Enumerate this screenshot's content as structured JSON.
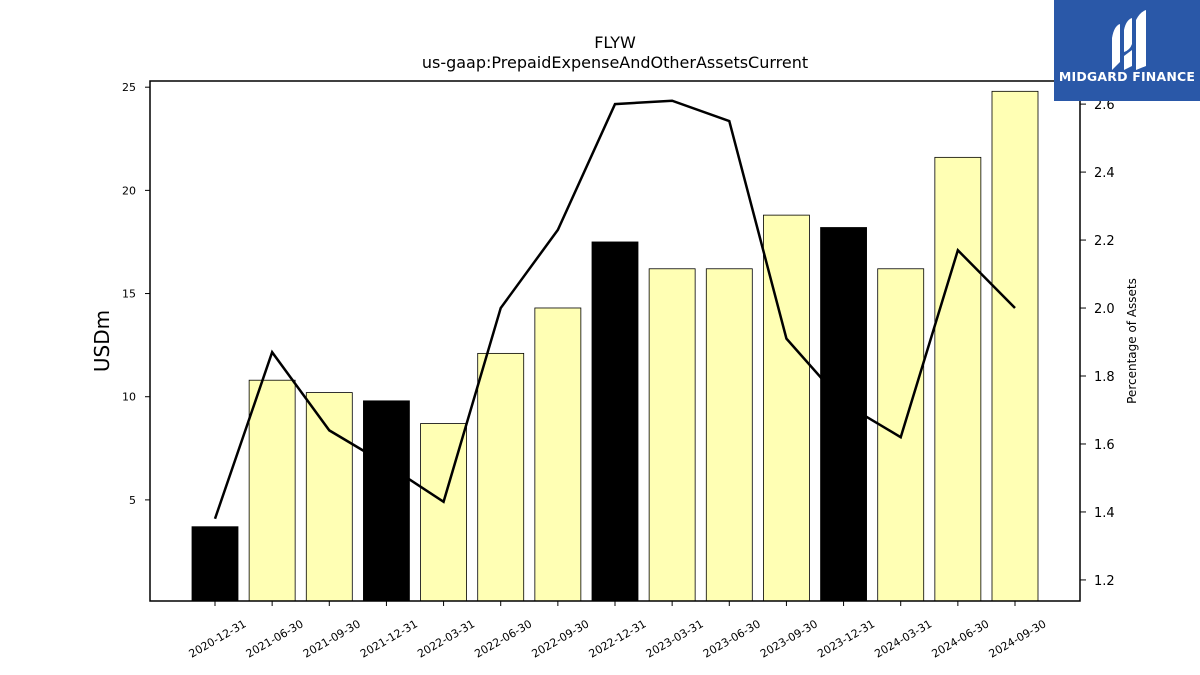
{
  "brand": {
    "name": "MIDGARD FINANCE",
    "color": "#2a58a8"
  },
  "chart_data": {
    "type": "bar",
    "title": "FLYW",
    "subtitle": "us-gaap:PrepaidExpenseAndOtherAssetsCurrent",
    "ylabel": "USDm",
    "y2label": "Percentage of Assets",
    "categories": [
      "2020-12-31",
      "2021-06-30",
      "2021-09-30",
      "2021-12-31",
      "2022-03-31",
      "2022-06-30",
      "2022-09-30",
      "2022-12-31",
      "2023-03-31",
      "2023-06-30",
      "2023-09-30",
      "2023-12-31",
      "2024-03-31",
      "2024-06-30",
      "2024-09-30"
    ],
    "series": [
      {
        "values": [
          3.7,
          10.8,
          10.2,
          9.8,
          8.7,
          12.1,
          14.3,
          17.5,
          16.2,
          16.2,
          18.8,
          18.2,
          16.2,
          21.6,
          24.8
        ],
        "axis": "left"
      },
      {
        "values": [
          1.38,
          1.87,
          1.64,
          1.54,
          1.43,
          2.0,
          2.23,
          2.6,
          2.61,
          2.55,
          1.91,
          1.72,
          1.62,
          2.17,
          2.0
        ],
        "axis": "right",
        "style": "line"
      }
    ],
    "bar_colors": [
      "#000000",
      "#ffffb4",
      "#ffffb4",
      "#000000",
      "#ffffb4",
      "#ffffb4",
      "#ffffb4",
      "#000000",
      "#ffffb4",
      "#ffffb4",
      "#ffffb4",
      "#000000",
      "#ffffb4",
      "#ffffb4",
      "#ffffb4"
    ],
    "line_color": "#000000",
    "ylim": [
      0.1,
      25.3
    ],
    "yticks": [
      5,
      10,
      15,
      20,
      25
    ],
    "y2lim": [
      1.138,
      2.668
    ],
    "y2ticks": [
      1.2,
      1.4,
      1.6,
      1.8,
      2.0,
      2.2,
      2.4,
      2.6
    ],
    "grid": false
  }
}
